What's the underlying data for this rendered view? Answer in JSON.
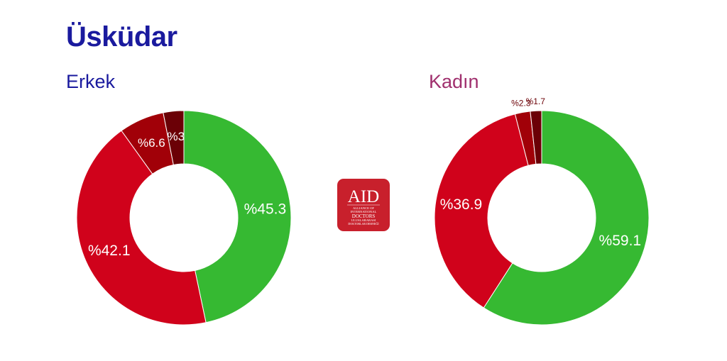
{
  "page": {
    "title": "Üsküdar"
  },
  "logo": {
    "main_text": "AID",
    "line1": "ALLIANCE OF",
    "line2": "INTERNATIONAL",
    "line3": "DOCTORS",
    "line4": "ULUSLARARASI",
    "line5": "DOKTORLAR DERNEĞİ",
    "color": "#c8202c"
  },
  "chart_data": [
    {
      "type": "pie",
      "donut": true,
      "title": "Erkek",
      "title_color": "#1a1a9e",
      "slices": [
        {
          "value": 45.3,
          "label": "%45.3",
          "color": "#36b932"
        },
        {
          "value": 42.1,
          "label": "%42.1",
          "color": "#d0021b"
        },
        {
          "value": 6.6,
          "label": "%6.6",
          "color": "#a10008"
        },
        {
          "value": 3,
          "label": "%3",
          "color": "#6b0006"
        }
      ]
    },
    {
      "type": "pie",
      "donut": true,
      "title": "Kadın",
      "title_color": "#a0306e",
      "slices": [
        {
          "value": 59.1,
          "label": "%59.1",
          "color": "#36b932"
        },
        {
          "value": 36.9,
          "label": "%36.9",
          "color": "#d0021b"
        },
        {
          "value": 2.3,
          "label": "%2.3",
          "color": "#a10008"
        },
        {
          "value": 1.7,
          "label": "%1.7",
          "color": "#6b0006"
        }
      ]
    }
  ]
}
